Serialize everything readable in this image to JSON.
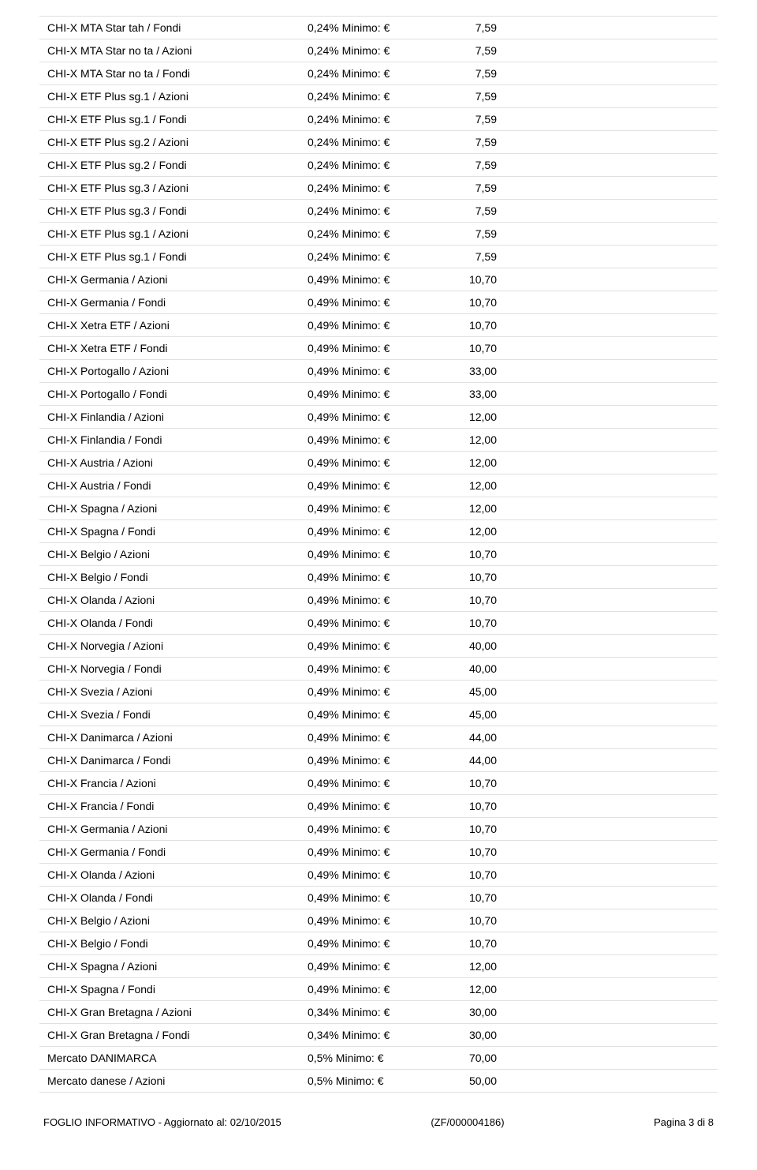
{
  "rows": [
    {
      "name": "CHI-X MTA Star tah / Fondi",
      "rate": "0,24% Minimo: €",
      "value": "7,59"
    },
    {
      "name": "CHI-X MTA Star no ta / Azioni",
      "rate": "0,24% Minimo: €",
      "value": "7,59"
    },
    {
      "name": "CHI-X MTA Star no ta / Fondi",
      "rate": "0,24% Minimo: €",
      "value": "7,59"
    },
    {
      "name": "CHI-X ETF Plus sg.1 / Azioni",
      "rate": "0,24% Minimo: €",
      "value": "7,59"
    },
    {
      "name": "CHI-X ETF Plus sg.1 / Fondi",
      "rate": "0,24% Minimo: €",
      "value": "7,59"
    },
    {
      "name": "CHI-X ETF Plus sg.2 / Azioni",
      "rate": "0,24% Minimo: €",
      "value": "7,59"
    },
    {
      "name": "CHI-X ETF Plus sg.2 / Fondi",
      "rate": "0,24% Minimo: €",
      "value": "7,59"
    },
    {
      "name": "CHI-X ETF Plus sg.3 / Azioni",
      "rate": "0,24% Minimo: €",
      "value": "7,59"
    },
    {
      "name": "CHI-X ETF Plus sg.3 / Fondi",
      "rate": "0,24% Minimo: €",
      "value": "7,59"
    },
    {
      "name": "CHI-X ETF Plus sg.1 / Azioni",
      "rate": "0,24% Minimo: €",
      "value": "7,59"
    },
    {
      "name": "CHI-X ETF Plus sg.1 / Fondi",
      "rate": "0,24% Minimo: €",
      "value": "7,59"
    },
    {
      "name": "CHI-X Germania / Azioni",
      "rate": "0,49% Minimo: €",
      "value": "10,70"
    },
    {
      "name": "CHI-X Germania / Fondi",
      "rate": "0,49% Minimo: €",
      "value": "10,70"
    },
    {
      "name": "CHI-X Xetra ETF / Azioni",
      "rate": "0,49% Minimo: €",
      "value": "10,70"
    },
    {
      "name": "CHI-X Xetra ETF / Fondi",
      "rate": "0,49% Minimo: €",
      "value": "10,70"
    },
    {
      "name": "CHI-X Portogallo / Azioni",
      "rate": "0,49% Minimo: €",
      "value": "33,00"
    },
    {
      "name": "CHI-X Portogallo / Fondi",
      "rate": "0,49% Minimo: €",
      "value": "33,00"
    },
    {
      "name": "CHI-X Finlandia / Azioni",
      "rate": "0,49% Minimo: €",
      "value": "12,00"
    },
    {
      "name": "CHI-X Finlandia / Fondi",
      "rate": "0,49% Minimo: €",
      "value": "12,00"
    },
    {
      "name": "CHI-X Austria / Azioni",
      "rate": "0,49% Minimo: €",
      "value": "12,00"
    },
    {
      "name": "CHI-X Austria / Fondi",
      "rate": "0,49% Minimo: €",
      "value": "12,00"
    },
    {
      "name": "CHI-X Spagna / Azioni",
      "rate": "0,49% Minimo: €",
      "value": "12,00"
    },
    {
      "name": "CHI-X Spagna / Fondi",
      "rate": "0,49% Minimo: €",
      "value": "12,00"
    },
    {
      "name": "CHI-X Belgio / Azioni",
      "rate": "0,49% Minimo: €",
      "value": "10,70"
    },
    {
      "name": "CHI-X Belgio / Fondi",
      "rate": "0,49% Minimo: €",
      "value": "10,70"
    },
    {
      "name": "CHI-X Olanda / Azioni",
      "rate": "0,49% Minimo: €",
      "value": "10,70"
    },
    {
      "name": "CHI-X Olanda / Fondi",
      "rate": "0,49% Minimo: €",
      "value": "10,70"
    },
    {
      "name": "CHI-X Norvegia / Azioni",
      "rate": "0,49% Minimo: €",
      "value": "40,00"
    },
    {
      "name": "CHI-X Norvegia / Fondi",
      "rate": "0,49% Minimo: €",
      "value": "40,00"
    },
    {
      "name": "CHI-X Svezia / Azioni",
      "rate": "0,49% Minimo: €",
      "value": "45,00"
    },
    {
      "name": "CHI-X Svezia / Fondi",
      "rate": "0,49% Minimo: €",
      "value": "45,00"
    },
    {
      "name": "CHI-X Danimarca / Azioni",
      "rate": "0,49% Minimo: €",
      "value": "44,00"
    },
    {
      "name": "CHI-X Danimarca / Fondi",
      "rate": "0,49% Minimo: €",
      "value": "44,00"
    },
    {
      "name": "CHI-X Francia / Azioni",
      "rate": "0,49% Minimo: €",
      "value": "10,70"
    },
    {
      "name": "CHI-X Francia / Fondi",
      "rate": "0,49% Minimo: €",
      "value": "10,70"
    },
    {
      "name": "CHI-X Germania / Azioni",
      "rate": "0,49% Minimo: €",
      "value": "10,70"
    },
    {
      "name": "CHI-X Germania / Fondi",
      "rate": "0,49% Minimo: €",
      "value": "10,70"
    },
    {
      "name": "CHI-X Olanda / Azioni",
      "rate": "0,49% Minimo: €",
      "value": "10,70"
    },
    {
      "name": "CHI-X Olanda / Fondi",
      "rate": "0,49% Minimo: €",
      "value": "10,70"
    },
    {
      "name": "CHI-X Belgio / Azioni",
      "rate": "0,49% Minimo: €",
      "value": "10,70"
    },
    {
      "name": "CHI-X Belgio / Fondi",
      "rate": "0,49% Minimo: €",
      "value": "10,70"
    },
    {
      "name": "CHI-X Spagna / Azioni",
      "rate": "0,49% Minimo: €",
      "value": "12,00"
    },
    {
      "name": "CHI-X Spagna / Fondi",
      "rate": "0,49% Minimo: €",
      "value": "12,00"
    },
    {
      "name": "CHI-X Gran Bretagna / Azioni",
      "rate": "0,34% Minimo: €",
      "value": "30,00"
    },
    {
      "name": "CHI-X Gran Bretagna / Fondi",
      "rate": "0,34% Minimo: €",
      "value": "30,00"
    },
    {
      "name": "Mercato DANIMARCA",
      "rate": "0,5% Minimo: €",
      "value": "70,00"
    },
    {
      "name": "Mercato danese / Azioni",
      "rate": "0,5% Minimo: €",
      "value": "50,00"
    }
  ],
  "footer": {
    "left": "FOGLIO INFORMATIVO - Aggiornato al: 02/10/2015",
    "center": "(ZF/000004186)",
    "right": "Pagina 3 di 8"
  }
}
